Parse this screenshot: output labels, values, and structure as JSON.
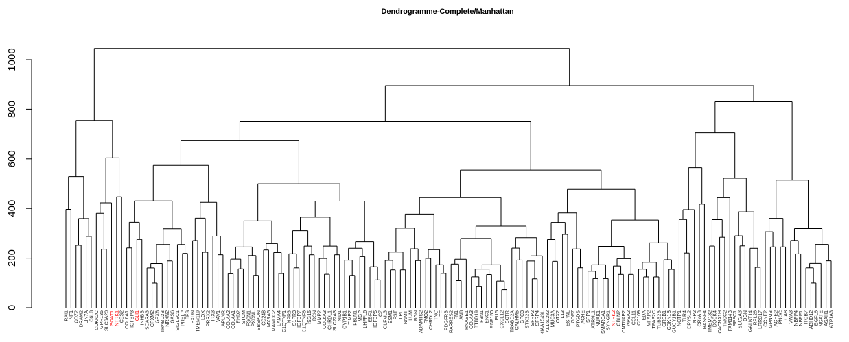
{
  "chart_data": {
    "type": "dendrogram",
    "title": "Dendrogramme-Complete/Manhattan",
    "ylim": [
      0,
      1050
    ],
    "yticks": [
      0,
      200,
      400,
      600,
      800,
      1000
    ],
    "grid": false,
    "highlight_color": "#ff0000",
    "leaves": [
      {
        "label": "RAI1"
      },
      {
        "label": "NF1"
      },
      {
        "label": "ODZ2"
      },
      {
        "label": "DRAM2"
      },
      {
        "label": "LIN7A"
      },
      {
        "label": "C6L8"
      },
      {
        "label": "CDKN2C"
      },
      {
        "label": "GPR135"
      },
      {
        "label": "SLC6A20"
      },
      {
        "label": "SOAT1",
        "highlight": true
      },
      {
        "label": "NTRK1",
        "highlight": true
      },
      {
        "label": "CES2"
      },
      {
        "label": "COL6A1"
      },
      {
        "label": "IGFBP3"
      },
      {
        "label": "GLI1",
        "highlight": true
      },
      {
        "label": "INHBB"
      },
      {
        "label": "SCARA3"
      },
      {
        "label": "CPXM2"
      },
      {
        "label": "GPX8"
      },
      {
        "label": "TRABD2B"
      },
      {
        "label": "NRXN2"
      },
      {
        "label": "GAS6"
      },
      {
        "label": "SIGLEC1"
      },
      {
        "label": "PRELP"
      },
      {
        "label": "EFS"
      },
      {
        "label": "PXDN"
      },
      {
        "label": "TMEM119"
      },
      {
        "label": "LOX"
      },
      {
        "label": "PRRX2"
      },
      {
        "label": "IRX3"
      },
      {
        "label": "VAV1"
      },
      {
        "label": "APLNR"
      },
      {
        "label": "COL4A2"
      },
      {
        "label": "COL4A1"
      },
      {
        "label": "EHD2"
      },
      {
        "label": "STOM"
      },
      {
        "label": "FSCN1"
      },
      {
        "label": "PXDNL"
      },
      {
        "label": "SBSPON"
      },
      {
        "label": "CD248"
      },
      {
        "label": "MXRA5"
      },
      {
        "label": "MAMDC2"
      },
      {
        "label": "LAMA4"
      },
      {
        "label": "C1QTNF1"
      },
      {
        "label": "NPR3"
      },
      {
        "label": "S1PR3"
      },
      {
        "label": "IGFBP7"
      },
      {
        "label": "C1QTNF6"
      },
      {
        "label": "ISG15"
      },
      {
        "label": "DCN"
      },
      {
        "label": "MMP2"
      },
      {
        "label": "COL6A3"
      },
      {
        "label": "CHRDL1"
      },
      {
        "label": "SLC22A3"
      },
      {
        "label": "NID1"
      },
      {
        "label": "CYP1B1"
      },
      {
        "label": "TIMP2"
      },
      {
        "label": "FBLN1"
      },
      {
        "label": "MGP"
      },
      {
        "label": "LHFPL6"
      },
      {
        "label": "EBF1"
      },
      {
        "label": "IGFBP5"
      },
      {
        "label": "C7"
      },
      {
        "label": "OLFML3"
      },
      {
        "label": "ESM1"
      },
      {
        "label": "FST"
      },
      {
        "label": "LPL"
      },
      {
        "label": "NNMT"
      },
      {
        "label": "LUM"
      },
      {
        "label": "BGN"
      },
      {
        "label": "ADAMTS2"
      },
      {
        "label": "FMO2"
      },
      {
        "label": "CHRDL2"
      },
      {
        "label": "TNC"
      },
      {
        "label": "TF"
      },
      {
        "label": "PDGFRB"
      },
      {
        "label": "RARRES2"
      },
      {
        "label": "FN1"
      },
      {
        "label": "AN8"
      },
      {
        "label": "RNASE1"
      },
      {
        "label": "COL4A3"
      },
      {
        "label": "BTBD19"
      },
      {
        "label": "FBN1"
      },
      {
        "label": "ENC1"
      },
      {
        "label": "RNF150"
      },
      {
        "label": "PI15"
      },
      {
        "label": "CXCL12"
      },
      {
        "label": "SCTR"
      },
      {
        "label": "TRABD2A"
      },
      {
        "label": "CALHM5"
      },
      {
        "label": "GPC3"
      },
      {
        "label": "STK32B"
      },
      {
        "label": "SFRP2"
      },
      {
        "label": "SFRP4"
      },
      {
        "label": "KIAA1549L"
      },
      {
        "label": "AL160282"
      },
      {
        "label": "MUC3A"
      },
      {
        "label": "OTX2"
      },
      {
        "label": "IL13"
      },
      {
        "label": "ESPNL"
      },
      {
        "label": "GDF7"
      },
      {
        "label": "PTGDS"
      },
      {
        "label": "ACHE"
      },
      {
        "label": "SPP1"
      },
      {
        "label": "ATRNL1"
      },
      {
        "label": "NUAK1"
      },
      {
        "label": "SMARCA1"
      },
      {
        "label": "SYNGR1"
      },
      {
        "label": "NTRK2",
        "highlight": true
      },
      {
        "label": "CBLN2"
      },
      {
        "label": "CNTNAP2"
      },
      {
        "label": "APBA2"
      },
      {
        "label": "CCL11"
      },
      {
        "label": "CD109"
      },
      {
        "label": "EDA"
      },
      {
        "label": "MFAP2"
      },
      {
        "label": "TFAP2C"
      },
      {
        "label": "TUBB2B"
      },
      {
        "label": "GREB1"
      },
      {
        "label": "CDKN1B"
      },
      {
        "label": "GUCY1B1"
      },
      {
        "label": "NCTP1"
      },
      {
        "label": "TLR4"
      },
      {
        "label": "DPYSL2"
      },
      {
        "label": "NRP2"
      },
      {
        "label": "CRYAB"
      },
      {
        "label": "RASSF4"
      },
      {
        "label": "TMEM132"
      },
      {
        "label": "DOCK4"
      },
      {
        "label": "CACNA1H"
      },
      {
        "label": "TMCC2"
      },
      {
        "label": "FAM114B"
      },
      {
        "label": "SPEC1"
      },
      {
        "label": "SLC2A3"
      },
      {
        "label": "OGN"
      },
      {
        "label": "GALNT14"
      },
      {
        "label": "RPL26"
      },
      {
        "label": "LRRC17"
      },
      {
        "label": "CCNE2"
      },
      {
        "label": "GPNMB"
      },
      {
        "label": "ACHE2"
      },
      {
        "label": "PNOC"
      },
      {
        "label": "CA8"
      },
      {
        "label": "VWA3"
      },
      {
        "label": "NBPF4"
      },
      {
        "label": "NBPF1"
      },
      {
        "label": "ITGB7"
      },
      {
        "label": "ABHD12"
      },
      {
        "label": "EGFL6"
      },
      {
        "label": "NGATE"
      },
      {
        "label": "ASAH1"
      },
      {
        "label": "ATP1A3"
      }
    ],
    "merges": [
      {
        "height": 1045
      },
      {
        "height": 895
      },
      {
        "height": 830
      },
      {
        "height": 755
      },
      {
        "height": 750
      },
      {
        "height": 690
      },
      {
        "height": 680
      },
      {
        "height": 660
      },
      {
        "height": 630
      },
      {
        "height": 610
      },
      {
        "height": 585
      },
      {
        "height": 560
      },
      {
        "height": 530
      },
      {
        "height": 495
      },
      {
        "height": 470
      },
      {
        "height": 440
      },
      {
        "height": 400
      },
      {
        "height": 370
      },
      {
        "height": 340
      },
      {
        "height": 315
      },
      {
        "height": 300
      },
      {
        "height": 280
      },
      {
        "height": 260
      },
      {
        "height": 240
      },
      {
        "height": 220
      },
      {
        "height": 200
      },
      {
        "height": 185
      },
      {
        "height": 165
      },
      {
        "height": 150
      },
      {
        "height": 125
      },
      {
        "height": 105
      },
      {
        "height": 80
      }
    ]
  }
}
